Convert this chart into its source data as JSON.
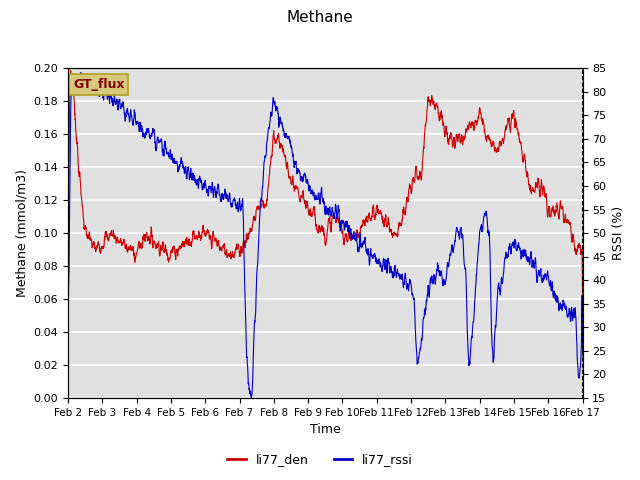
{
  "title": "Methane",
  "xlabel": "Time",
  "ylabel_left": "Methane (mmol/m3)",
  "ylabel_right": "RSSI (%)",
  "ylim_left": [
    0.0,
    0.2
  ],
  "ylim_right": [
    15,
    85
  ],
  "yticks_left": [
    0.0,
    0.02,
    0.04,
    0.06,
    0.08,
    0.1,
    0.12,
    0.14,
    0.16,
    0.18,
    0.2
  ],
  "yticks_right": [
    15,
    20,
    25,
    30,
    35,
    40,
    45,
    50,
    55,
    60,
    65,
    70,
    75,
    80,
    85
  ],
  "xtick_labels": [
    "Feb 2",
    "Feb 3",
    "Feb 4",
    "Feb 5",
    "Feb 6",
    "Feb 7",
    "Feb 8",
    "Feb 9",
    "Feb 10",
    "Feb 11",
    "Feb 12",
    "Feb 13",
    "Feb 14",
    "Feb 15",
    "Feb 16",
    "Feb 17"
  ],
  "bg_color": "#e0e0e0",
  "fig_color": "#ffffff",
  "line_red_color": "#cc0000",
  "line_blue_color": "#0000cc",
  "legend_labels": [
    "li77_den",
    "li77_rssi"
  ],
  "gt_flux_label": "GT_flux",
  "gt_flux_bg": "#d4c87a",
  "gt_flux_border": "#b0a020"
}
